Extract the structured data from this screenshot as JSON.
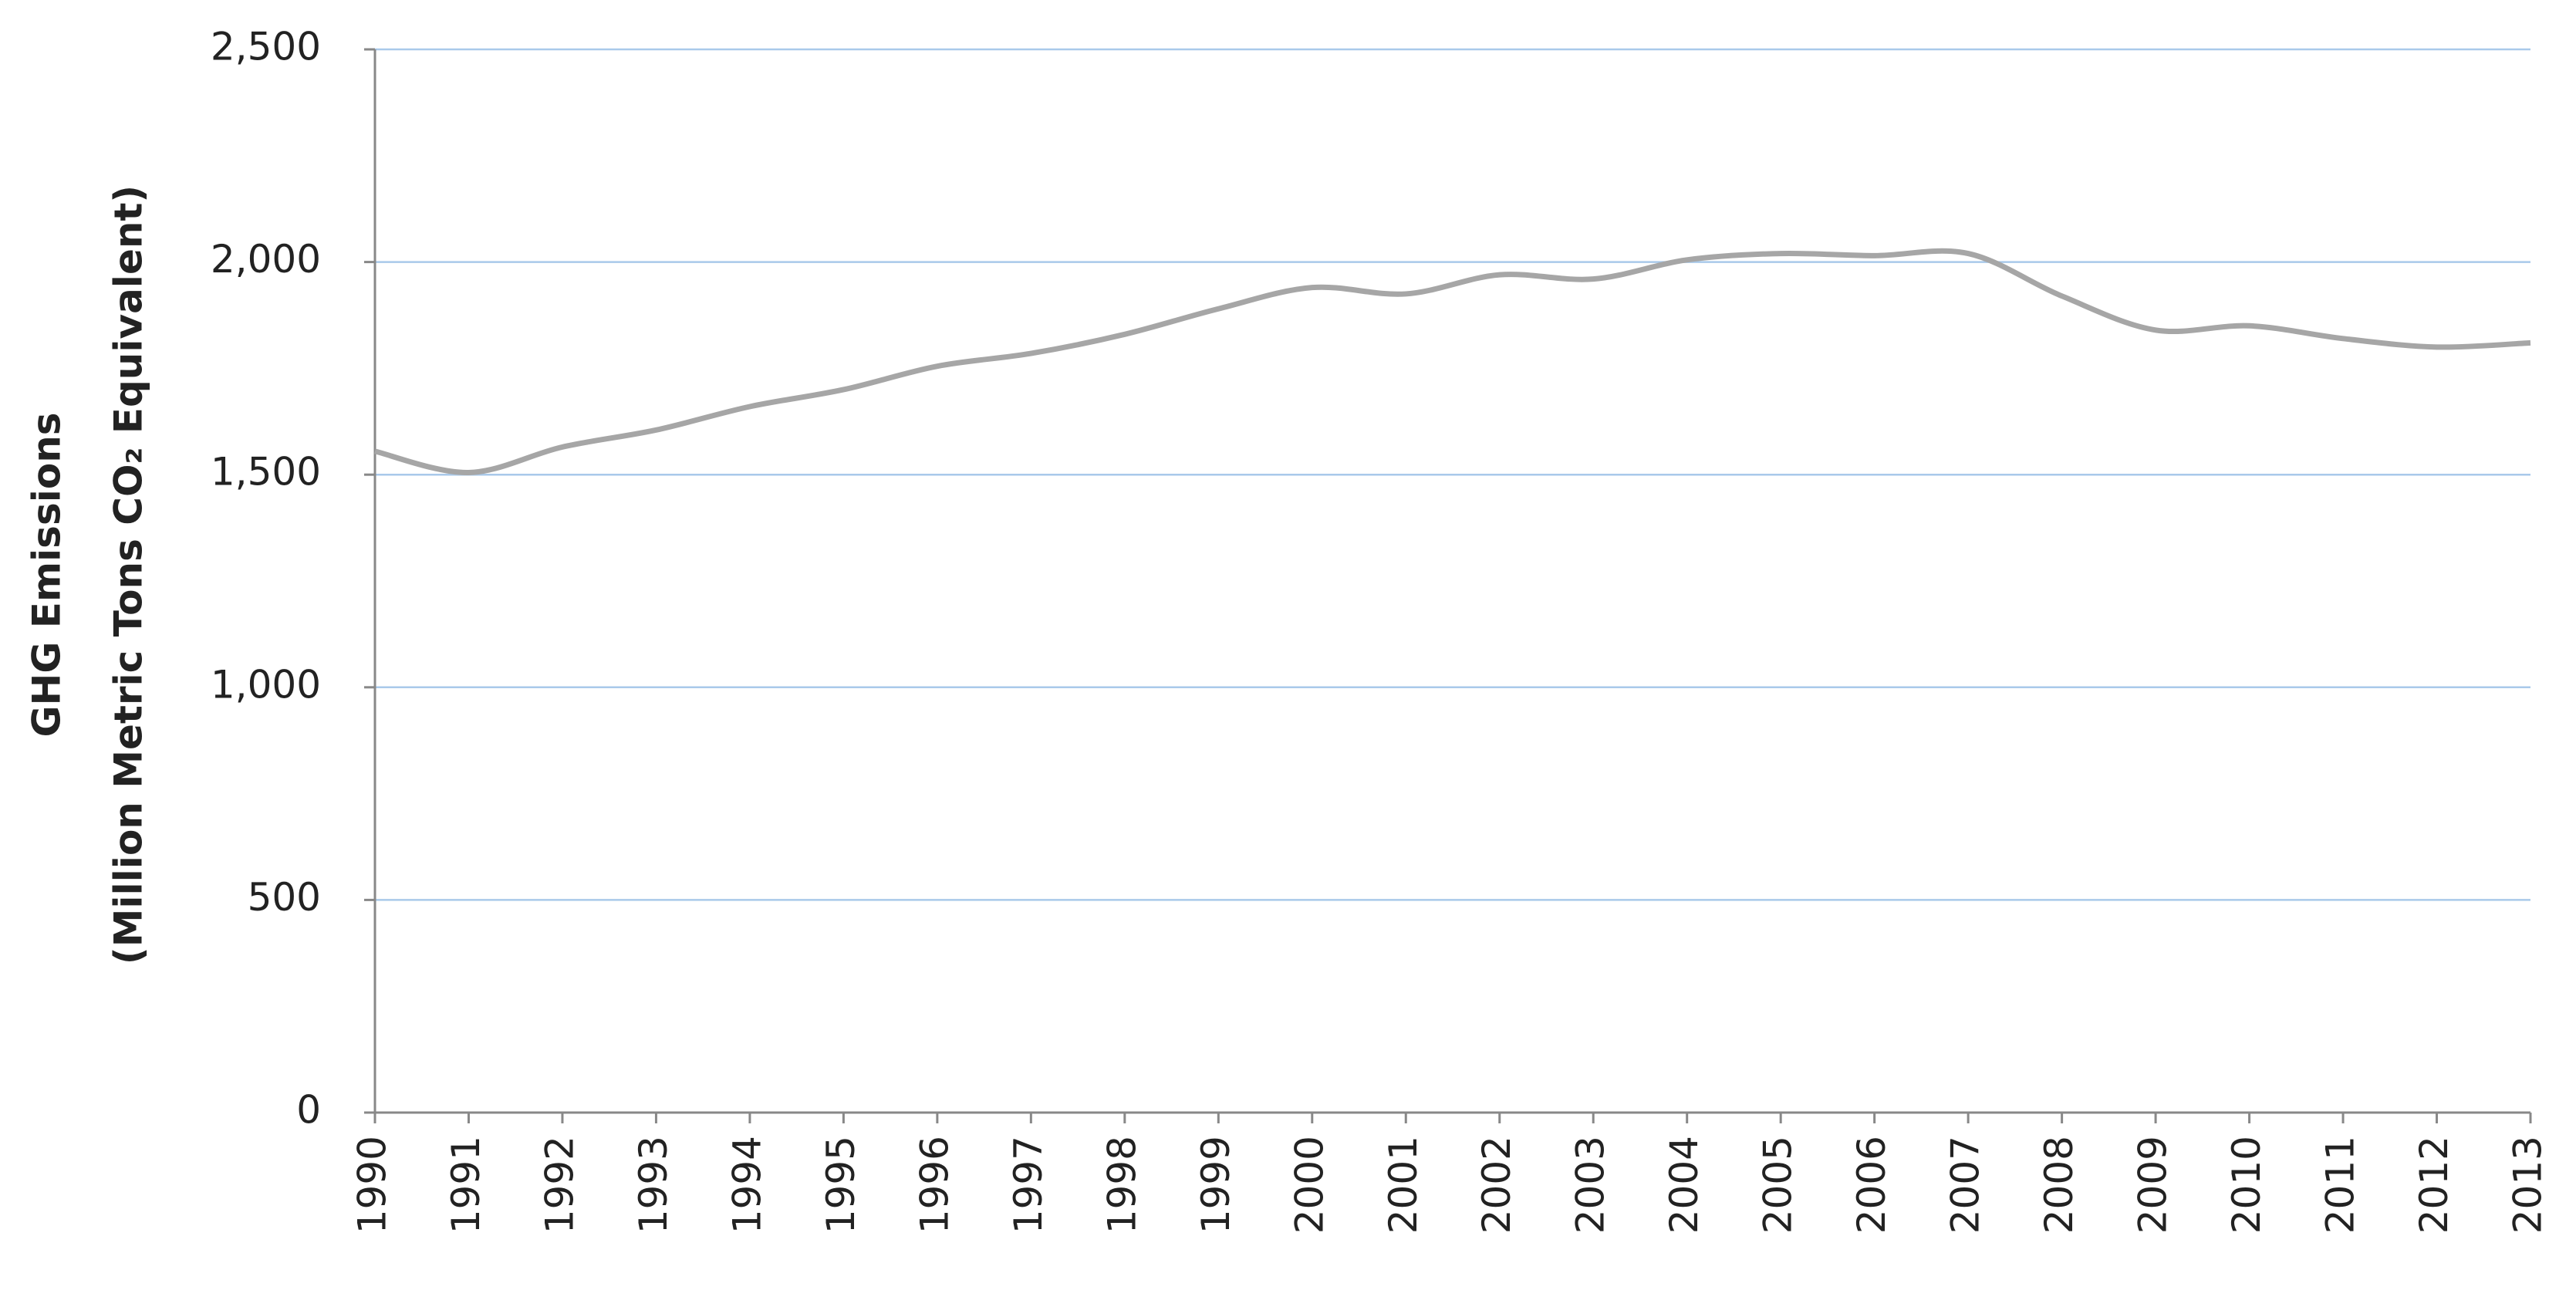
{
  "chart_data": {
    "type": "line",
    "y_label": [
      "GHG Emissions",
      "(Million Metric Tons CO₂ Equivalent)"
    ],
    "categories": [
      "1990",
      "1991",
      "1992",
      "1993",
      "1994",
      "1995",
      "1996",
      "1997",
      "1998",
      "1999",
      "2000",
      "2001",
      "2002",
      "2003",
      "2004",
      "2005",
      "2006",
      "2007",
      "2008",
      "2009",
      "2010",
      "2011",
      "2012",
      "2013"
    ],
    "values": [
      1555,
      1505,
      1565,
      1605,
      1660,
      1700,
      1755,
      1785,
      1830,
      1890,
      1940,
      1925,
      1970,
      1960,
      2005,
      2020,
      2015,
      2020,
      1920,
      1840,
      1850,
      1820,
      1800,
      1810
    ],
    "color": "#a6a6a6",
    "ylim": [
      0,
      2500
    ],
    "yticks": [
      0,
      500,
      {
        "value": 1000,
        "label": "1,000"
      },
      {
        "value": 1500,
        "label": "1,500"
      },
      {
        "value": 2000,
        "label": "2,000"
      },
      {
        "value": 2500,
        "label": "2,500"
      }
    ],
    "grid": true
  }
}
